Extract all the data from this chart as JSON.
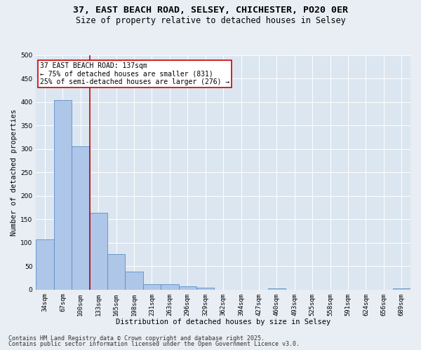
{
  "title_line1": "37, EAST BEACH ROAD, SELSEY, CHICHESTER, PO20 0ER",
  "title_line2": "Size of property relative to detached houses in Selsey",
  "xlabel": "Distribution of detached houses by size in Selsey",
  "ylabel": "Number of detached properties",
  "categories": [
    "34sqm",
    "67sqm",
    "100sqm",
    "133sqm",
    "165sqm",
    "198sqm",
    "231sqm",
    "263sqm",
    "296sqm",
    "329sqm",
    "362sqm",
    "394sqm",
    "427sqm",
    "460sqm",
    "493sqm",
    "525sqm",
    "558sqm",
    "591sqm",
    "624sqm",
    "656sqm",
    "689sqm"
  ],
  "values": [
    107,
    404,
    305,
    163,
    75,
    38,
    12,
    11,
    7,
    4,
    0,
    0,
    0,
    3,
    0,
    0,
    0,
    0,
    0,
    0,
    3
  ],
  "bar_color": "#aec6e8",
  "bar_edge_color": "#5b8fc9",
  "vline_color": "#cc0000",
  "annotation_text": "37 EAST BEACH ROAD: 137sqm\n← 75% of detached houses are smaller (831)\n25% of semi-detached houses are larger (276) →",
  "annotation_box_color": "#ffffff",
  "annotation_box_edge": "#cc0000",
  "ylim": [
    0,
    500
  ],
  "yticks": [
    0,
    50,
    100,
    150,
    200,
    250,
    300,
    350,
    400,
    450,
    500
  ],
  "bg_color": "#e8eef4",
  "plot_bg_color": "#dce6f0",
  "grid_color": "#ffffff",
  "footer_line1": "Contains HM Land Registry data © Crown copyright and database right 2025.",
  "footer_line2": "Contains public sector information licensed under the Open Government Licence v3.0.",
  "title_fontsize": 9.5,
  "subtitle_fontsize": 8.5,
  "axis_label_fontsize": 7.5,
  "tick_fontsize": 6.5,
  "annotation_fontsize": 7,
  "footer_fontsize": 6
}
